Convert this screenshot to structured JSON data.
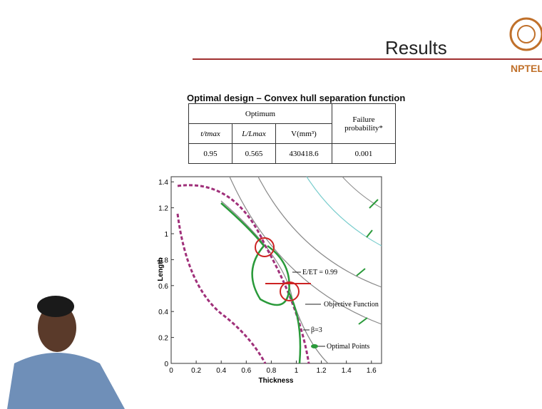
{
  "header": {
    "title": "Results",
    "logo": "NPTEL"
  },
  "table": {
    "caption": "Optimal design – Convex hull separation function",
    "group_header": "Optimum",
    "failure_header": "Failure probability*",
    "columns": [
      "t/tmax",
      "L/Lmax",
      "V(mm³)"
    ],
    "row": [
      "0.95",
      "0.565",
      "430418.6",
      "0.001"
    ]
  },
  "figure": {
    "x_label": "Thickness",
    "y_label": "Length",
    "x_ticks": [
      "0",
      "0.2",
      "0.4",
      "0.6",
      "0.8",
      "1",
      "1.2",
      "1.4",
      "1.6"
    ],
    "y_ticks": [
      "0",
      "0.2",
      "0.4",
      "0.6",
      "0.8",
      "1",
      "1.2",
      "1.4"
    ],
    "annotations": [
      "E/ET = 0.99",
      "Objective Function",
      "β=3",
      "Optimal Points"
    ]
  }
}
